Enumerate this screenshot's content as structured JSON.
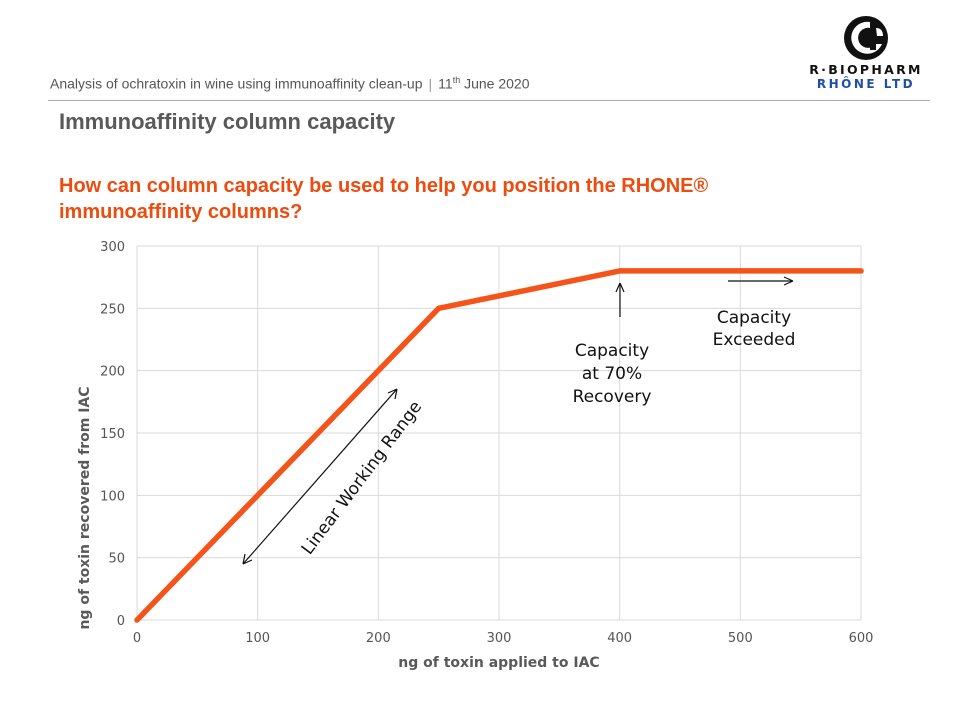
{
  "header": {
    "subtitle_main": "Analysis of ochratoxin in wine using immunoaffinity clean-up",
    "separator": "|",
    "date_day": "11",
    "date_suffix": "th",
    "date_rest": " June 2020"
  },
  "logo": {
    "line1": "R·BIOPHARM",
    "line2": "RHÔNE LTD",
    "brand_color": "#1f4fa8"
  },
  "page_title": "Immunoaffinity column capacity",
  "question": "How can column capacity be used to help you position the RHONE® immunoaffinity columns?",
  "colors": {
    "accent": "#ee4b0f",
    "line": "#f4541a",
    "grid": "#d9d9d9",
    "title_gray": "#595959"
  },
  "chart_data": {
    "type": "line",
    "xlabel": "ng of toxin applied to IAC",
    "ylabel": "ng of toxin recovered from IAC",
    "xlim": [
      0,
      600
    ],
    "ylim": [
      0,
      300
    ],
    "xticks": [
      0,
      100,
      200,
      300,
      400,
      500,
      600
    ],
    "yticks": [
      0,
      50,
      100,
      150,
      200,
      250,
      300
    ],
    "grid": true,
    "series": [
      {
        "x": [
          0,
          250,
          400,
          600
        ],
        "y": [
          0,
          250,
          280,
          280
        ]
      }
    ],
    "annotations": {
      "linear": "Linear Working Range",
      "capacity_lines": [
        "Capacity",
        "at 70%",
        "Recovery"
      ],
      "exceeded_lines": [
        "Capacity",
        "Exceeded"
      ]
    }
  }
}
